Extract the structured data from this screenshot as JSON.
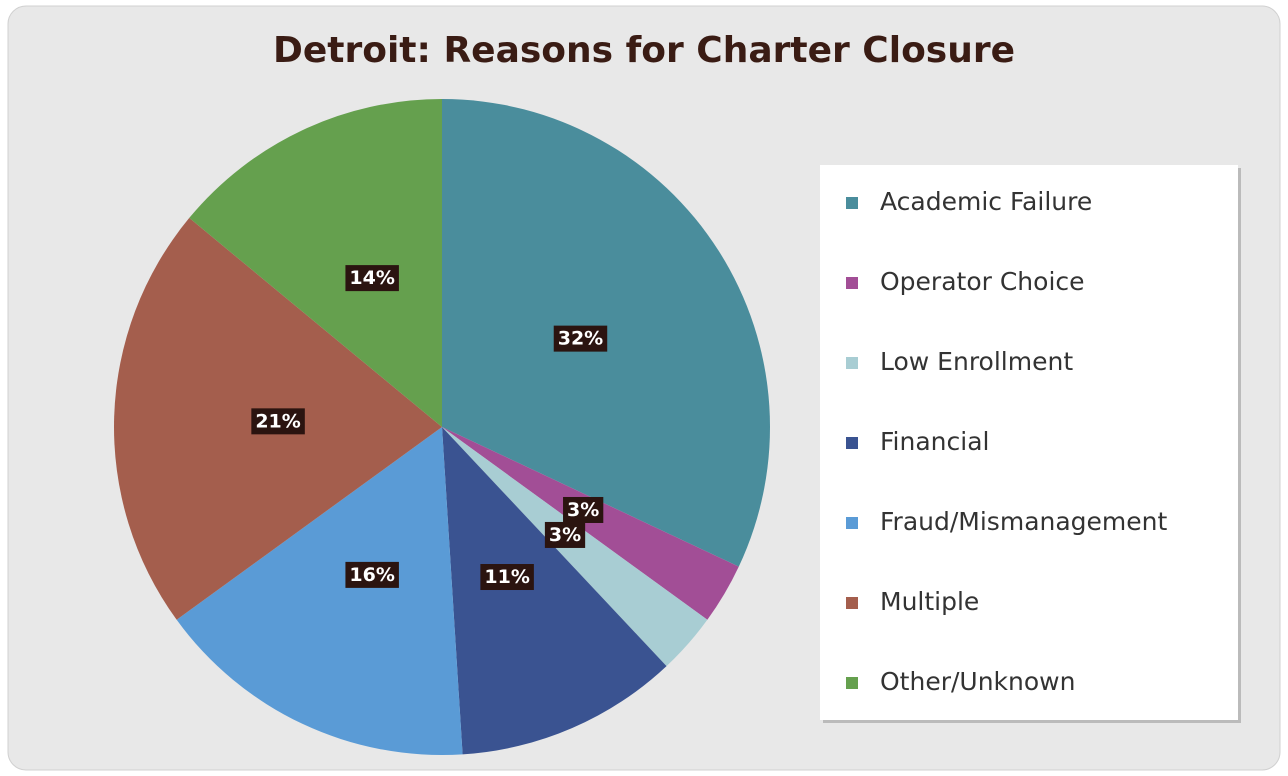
{
  "chart_data": {
    "type": "pie",
    "title": "Detroit: Reasons for Charter Closure",
    "categories": [
      "Academic Failure",
      "Operator Choice",
      "Low Enrollment",
      "Financial",
      "Fraud/Mismanagement",
      "Multiple",
      "Other/Unknown"
    ],
    "values": [
      32,
      3,
      3,
      11,
      16,
      21,
      14
    ],
    "value_labels": [
      "32%",
      "3%",
      "3%",
      "11%",
      "16%",
      "21%",
      "14%"
    ],
    "colors": [
      "#4a8d9c",
      "#a24e96",
      "#a8cdd3",
      "#3a5391",
      "#5a9bd6",
      "#a45e4d",
      "#65a04e"
    ],
    "legend": "right"
  }
}
